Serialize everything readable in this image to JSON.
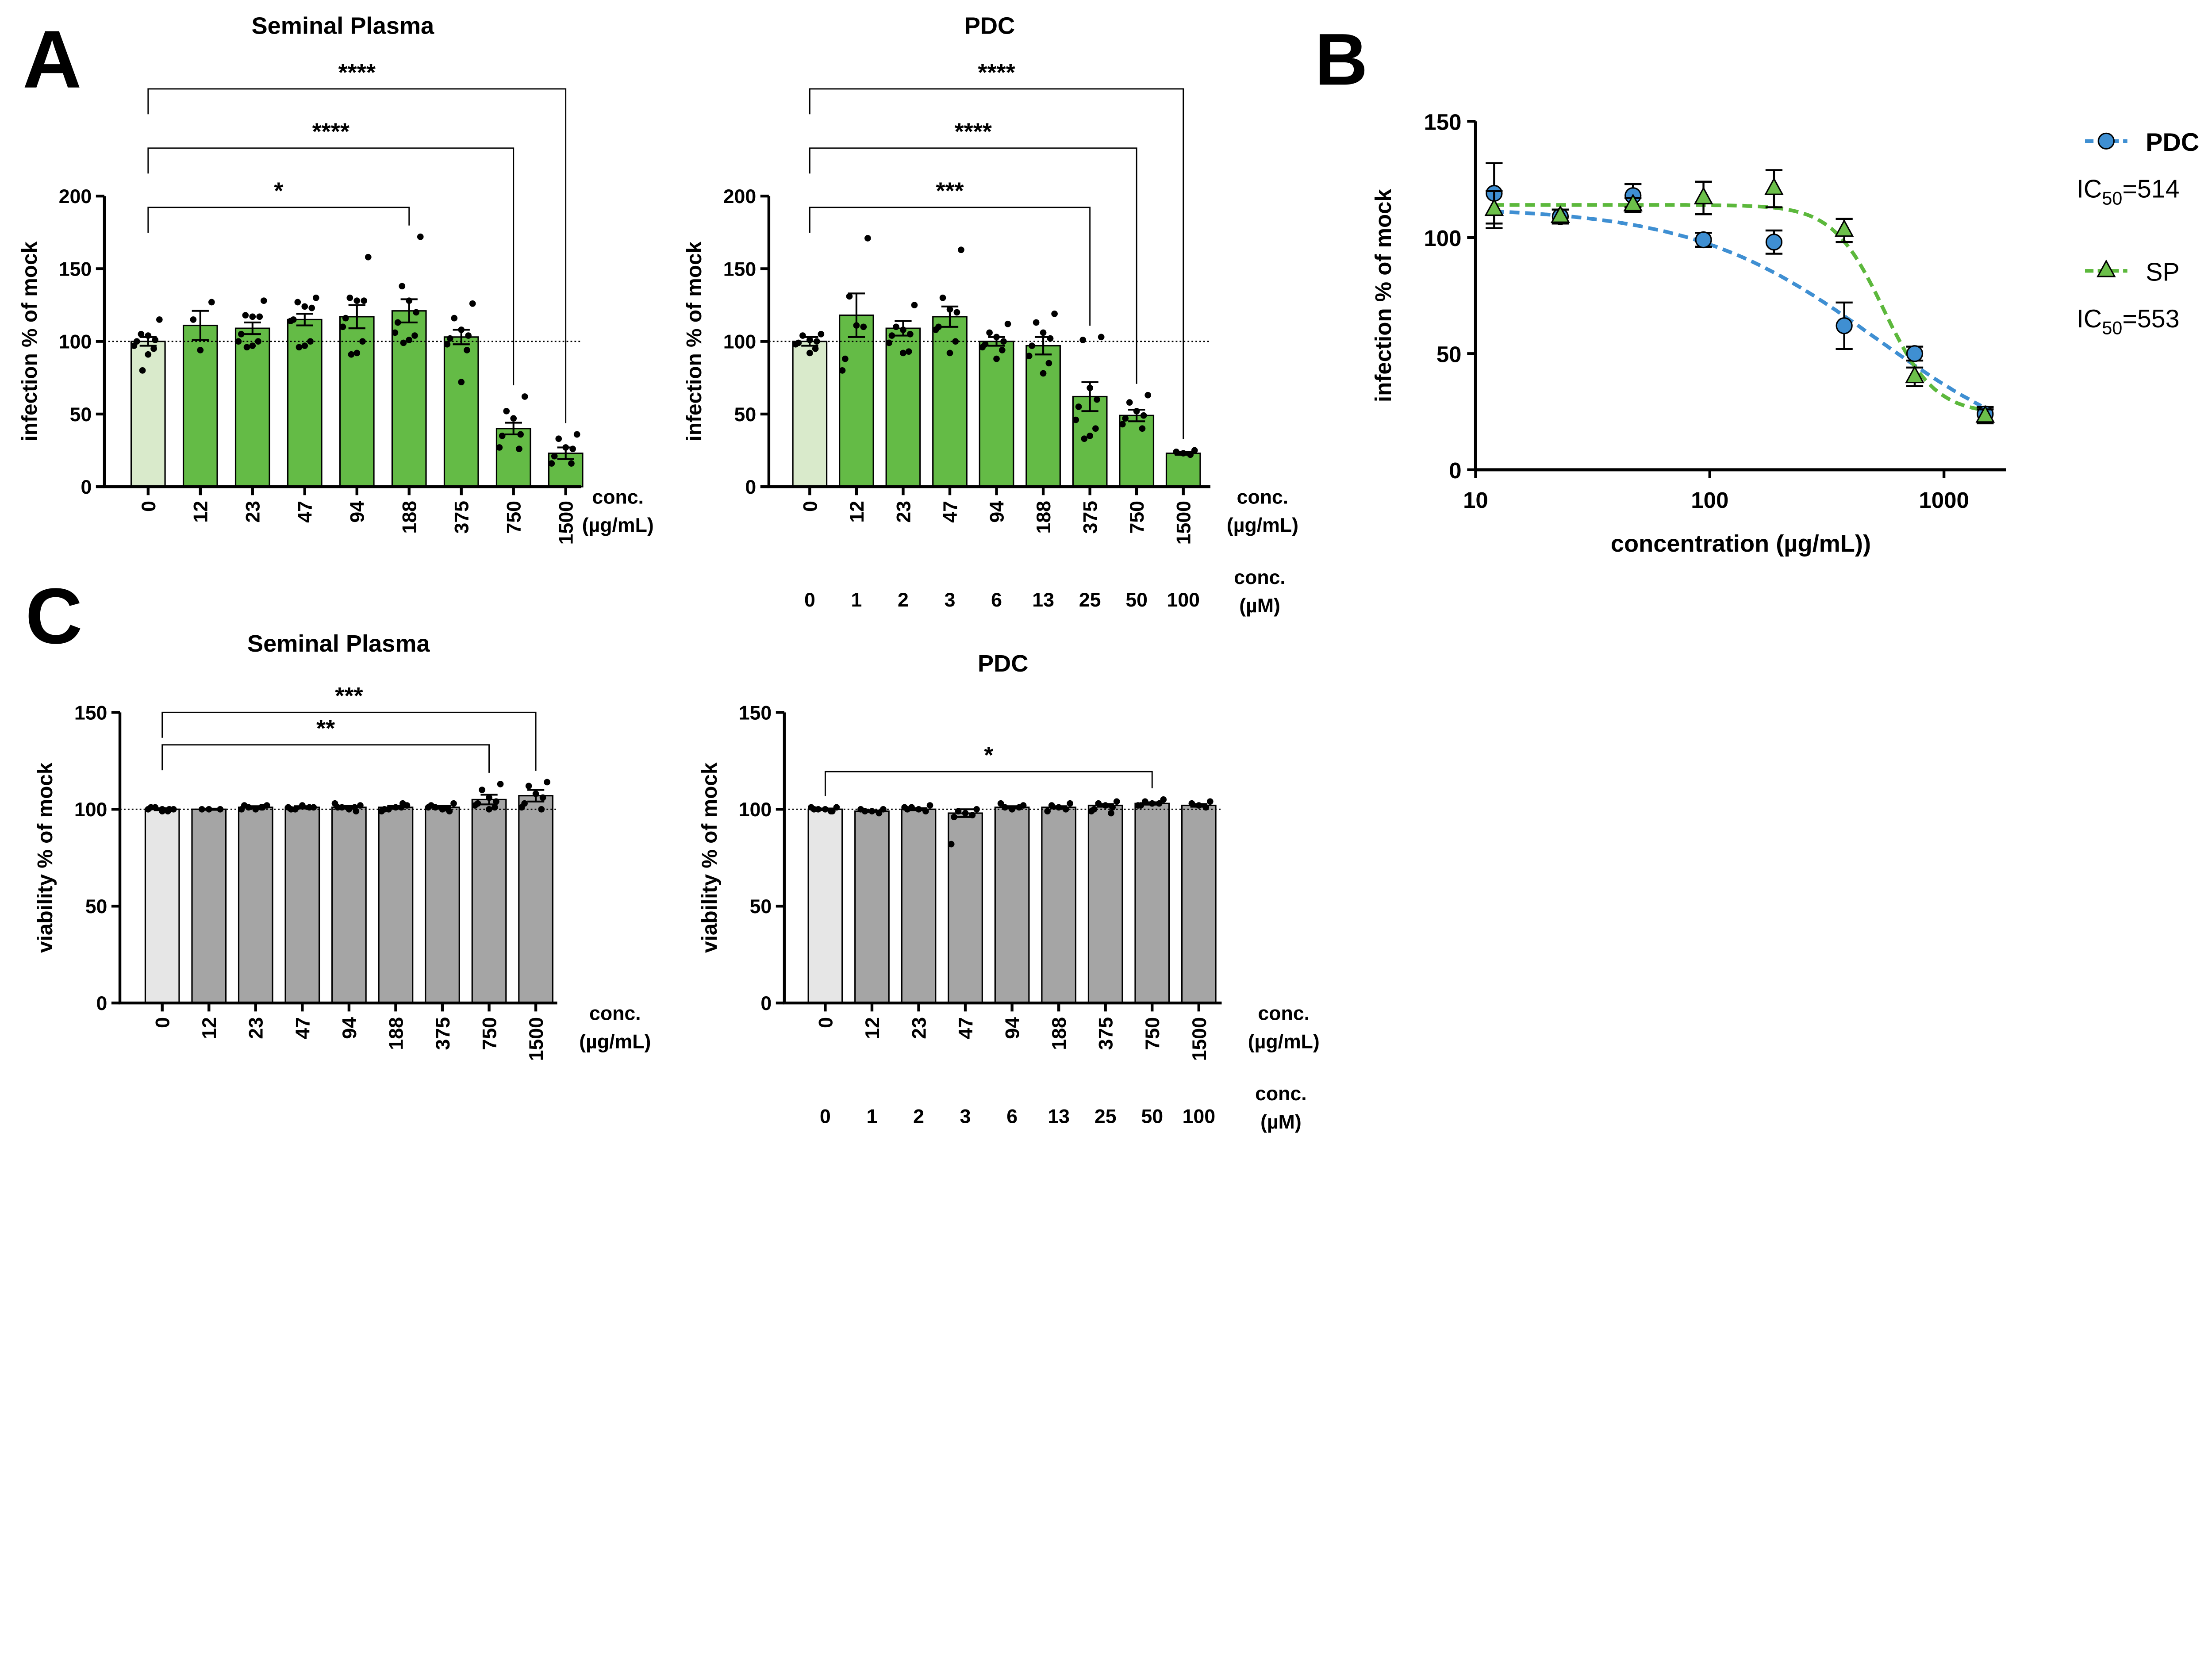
{
  "panel_letters": {
    "a": "A",
    "b": "B",
    "c": "C"
  },
  "colors": {
    "green": "#64bb46",
    "green_light": "#d9eacb",
    "gray": "#a5a5a5",
    "gray_light": "#e6e6e6",
    "blue": "#3f8fd2",
    "green_line": "#5cb83c"
  },
  "chart_data": [
    {
      "id": "a1",
      "type": "bar",
      "title": "Seminal Plasma",
      "ylabel": "infection % of mock",
      "xlabel": [
        "conc.",
        "(µg/mL)"
      ],
      "ylim": [
        0,
        200
      ],
      "yticks": [
        0,
        50,
        100,
        150,
        200
      ],
      "reference_line": 100,
      "categories": [
        "0",
        "12",
        "23",
        "47",
        "94",
        "188",
        "375",
        "750",
        "1500"
      ],
      "means": [
        100,
        111,
        109,
        115,
        117,
        121,
        103,
        40,
        23
      ],
      "sem": [
        3,
        10,
        4,
        4,
        8,
        8,
        5,
        4,
        4
      ],
      "points": [
        [
          115,
          105,
          104,
          101,
          100,
          97,
          95,
          91,
          80
        ],
        [
          127,
          115,
          94
        ],
        [
          128,
          118,
          117,
          117,
          105,
          100,
          100,
          97,
          96
        ],
        [
          130,
          127,
          124,
          123,
          115,
          114,
          100,
          97,
          96
        ],
        [
          158,
          130,
          128,
          128,
          116,
          110,
          100,
          92,
          91
        ],
        [
          172,
          138,
          128,
          120,
          113,
          106,
          104,
          101,
          99
        ],
        [
          126,
          116,
          108,
          104,
          102,
          98,
          94,
          72
        ],
        [
          62,
          52,
          47,
          36,
          35,
          27,
          26
        ],
        [
          36,
          33,
          27,
          26,
          21,
          16,
          16
        ]
      ],
      "significance": [
        {
          "from": 0,
          "to": 5,
          "label": "*"
        },
        {
          "from": 0,
          "to": 7,
          "label": "****"
        },
        {
          "from": 0,
          "to": 8,
          "label": "****"
        }
      ]
    },
    {
      "id": "a2",
      "type": "bar",
      "title": "PDC",
      "ylabel": "infection % of mock",
      "xlabel": [
        "conc.",
        "(µg/mL)"
      ],
      "xlabel2": [
        "conc.",
        "(µM)"
      ],
      "ylim": [
        0,
        200
      ],
      "yticks": [
        0,
        50,
        100,
        150,
        200
      ],
      "reference_line": 100,
      "categories": [
        "0",
        "12",
        "23",
        "47",
        "94",
        "188",
        "375",
        "750",
        "1500"
      ],
      "categories2": [
        "0",
        "1",
        "2",
        "3",
        "6",
        "13",
        "25",
        "50",
        "100"
      ],
      "means": [
        100,
        118,
        109,
        117,
        100,
        97,
        62,
        49,
        23
      ],
      "sem": [
        3,
        15,
        5,
        7,
        3,
        6,
        10,
        4,
        1
      ],
      "points": [
        [
          105,
          104,
          101,
          100,
          99,
          98,
          95,
          92
        ],
        [
          171,
          131,
          111,
          110,
          88,
          80
        ],
        [
          125,
          110,
          108,
          105,
          104,
          99,
          93,
          92
        ],
        [
          163,
          130,
          122,
          120,
          110,
          108,
          100,
          92
        ],
        [
          112,
          106,
          103,
          100,
          98,
          96,
          94,
          88
        ],
        [
          119,
          113,
          106,
          102,
          97,
          90,
          85,
          78
        ],
        [
          103,
          101,
          68,
          60,
          55,
          46,
          40,
          35,
          33
        ],
        [
          63,
          58,
          52,
          49,
          47,
          43,
          40
        ],
        [
          25,
          24,
          23,
          22
        ]
      ],
      "significance": [
        {
          "from": 0,
          "to": 6,
          "label": "***"
        },
        {
          "from": 0,
          "to": 7,
          "label": "****"
        },
        {
          "from": 0,
          "to": 8,
          "label": "****"
        }
      ]
    },
    {
      "id": "b",
      "type": "line",
      "ylabel": "infection % of mock",
      "xlabel": "concentration (µg/mL))",
      "xscale": "log",
      "xlim": [
        10,
        2000
      ],
      "xticks": [
        "10",
        "100",
        "1000"
      ],
      "ylim": [
        0,
        150
      ],
      "yticks": [
        0,
        50,
        100,
        150
      ],
      "legend": "right",
      "series": [
        {
          "name": "PDC",
          "ic50_label": "IC",
          "ic50_sub": "50",
          "ic50_value": "=514",
          "marker": "circle",
          "x": [
            12,
            23,
            47,
            94,
            188,
            375,
            750,
            1500
          ],
          "y": [
            119,
            109,
            118,
            99,
            98,
            62,
            50,
            24
          ],
          "err": [
            13,
            3,
            5,
            3,
            5,
            10,
            3,
            3
          ],
          "fit": {
            "top": 113,
            "bottom": 0,
            "ic50": 514,
            "hill": 1.1
          }
        },
        {
          "name": "SP",
          "ic50_label": "IC",
          "ic50_sub": "50",
          "ic50_value": "=553",
          "marker": "triangle",
          "x": [
            12,
            23,
            47,
            94,
            188,
            375,
            750,
            1500
          ],
          "y": [
            112,
            109,
            114,
            117,
            121,
            103,
            40,
            23
          ],
          "err": [
            8,
            3,
            3,
            7,
            8,
            5,
            4,
            3
          ],
          "fit": {
            "top": 114,
            "bottom": 24,
            "ic50": 553,
            "hill": 4
          }
        }
      ]
    },
    {
      "id": "c1",
      "type": "bar",
      "title": "Seminal Plasma",
      "ylabel": "viability % of mock",
      "xlabel": [
        "conc.",
        "(µg/mL)"
      ],
      "ylim": [
        0,
        150
      ],
      "yticks": [
        0,
        50,
        100,
        150
      ],
      "reference_line": 100,
      "categories": [
        "0",
        "12",
        "23",
        "47",
        "94",
        "188",
        "375",
        "750",
        "1500"
      ],
      "means": [
        100,
        100,
        101,
        101,
        101,
        101,
        101,
        105,
        107
      ],
      "sem": [
        0.5,
        0.3,
        0.6,
        0.6,
        0.7,
        0.7,
        0.7,
        2.5,
        3
      ],
      "points": [
        [
          100,
          101,
          99,
          100,
          101,
          100,
          99,
          100
        ],
        [
          100,
          100,
          100
        ],
        [
          102,
          101,
          100,
          101,
          102,
          100,
          101
        ],
        [
          101,
          100,
          102,
          101,
          100,
          101
        ],
        [
          102,
          101,
          100,
          99,
          101,
          103,
          101
        ],
        [
          102,
          100,
          101,
          103,
          100,
          99,
          101
        ],
        [
          103,
          101,
          100,
          99,
          102,
          101,
          100
        ],
        [
          113,
          110,
          106,
          104,
          103,
          102,
          101,
          100
        ],
        [
          114,
          112,
          108,
          106,
          103,
          101,
          100
        ]
      ],
      "significance": [
        {
          "from": 0,
          "to": 7,
          "label": "**"
        },
        {
          "from": 0,
          "to": 8,
          "label": "***"
        }
      ]
    },
    {
      "id": "c2",
      "type": "bar",
      "title": "PDC",
      "ylabel": "viability % of mock",
      "xlabel": [
        "conc.",
        "(µg/mL)"
      ],
      "xlabel2": [
        "conc.",
        "(µM)"
      ],
      "ylim": [
        0,
        150
      ],
      "yticks": [
        0,
        50,
        100,
        150
      ],
      "reference_line": 100,
      "categories": [
        "0",
        "12",
        "23",
        "47",
        "94",
        "188",
        "375",
        "750",
        "1500"
      ],
      "categories2": [
        "0",
        "1",
        "2",
        "3",
        "6",
        "13",
        "25",
        "50",
        "100"
      ],
      "means": [
        100,
        99,
        100,
        98,
        101,
        101,
        102,
        103,
        102
      ],
      "sem": [
        0.4,
        0.4,
        0.5,
        2,
        0.6,
        0.6,
        0.7,
        0.6,
        0.7
      ],
      "points": [
        [
          101,
          100,
          100,
          99,
          100,
          101,
          99
        ],
        [
          100,
          99,
          99,
          98,
          100
        ],
        [
          102,
          101,
          100,
          99,
          100,
          101
        ],
        [
          100,
          99,
          98,
          97,
          96,
          82
        ],
        [
          102,
          101,
          100,
          101,
          103
        ],
        [
          103,
          102,
          101,
          100,
          99
        ],
        [
          104,
          103,
          102,
          101,
          100,
          99,
          98
        ],
        [
          105,
          104,
          103,
          103,
          102,
          102
        ],
        [
          104,
          103,
          102,
          101
        ]
      ],
      "significance": [
        {
          "from": 0,
          "to": 7,
          "label": "*"
        }
      ]
    }
  ]
}
